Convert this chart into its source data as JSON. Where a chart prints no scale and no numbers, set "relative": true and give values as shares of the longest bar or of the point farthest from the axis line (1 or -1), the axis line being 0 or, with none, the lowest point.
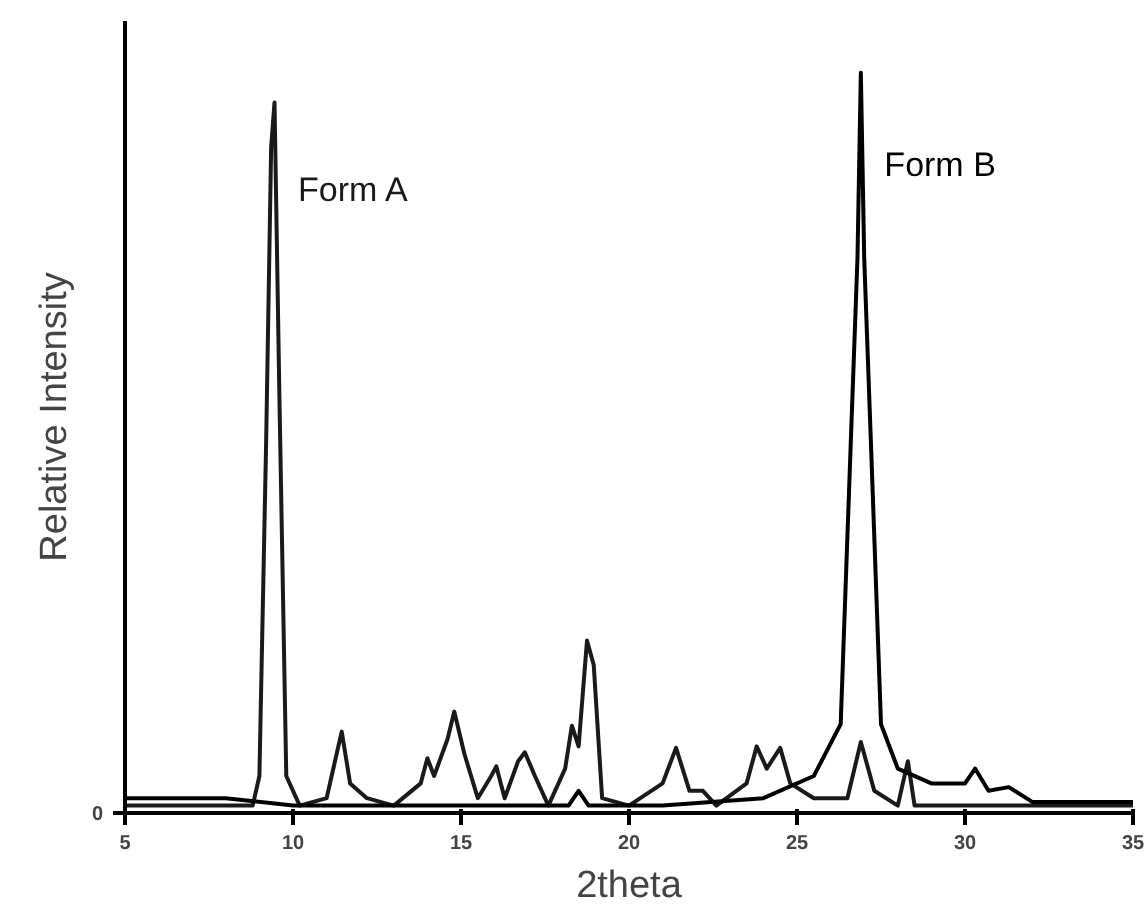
{
  "chart_data": {
    "type": "line",
    "xlabel": "2theta",
    "ylabel": "Relative Intensity",
    "relative": true,
    "xlim": [
      5,
      35
    ],
    "xticks": [
      5,
      10,
      15,
      20,
      25,
      30,
      35
    ],
    "grid": false,
    "marker": "none",
    "line_style": "solid",
    "annotations": [
      "0"
    ],
    "series": [
      {
        "name": "Form A",
        "color": "#1a1a1a",
        "x": [
          5,
          8.8,
          9.0,
          9.2,
          9.35,
          9.45,
          9.6,
          9.8,
          10.2,
          11.0,
          11.3,
          11.45,
          11.7,
          12.2,
          13,
          13.8,
          14.0,
          14.2,
          14.6,
          14.8,
          15.1,
          15.5,
          15.9,
          16.05,
          16.3,
          16.7,
          16.9,
          17.2,
          17.6,
          18.1,
          18.3,
          18.5,
          18.75,
          18.95,
          19.2,
          20,
          21.0,
          21.4,
          21.8,
          22.2,
          22.6,
          23.5,
          23.8,
          24.1,
          24.5,
          24.8,
          25.5,
          26.5,
          26.9,
          27.3,
          28.0,
          28.3,
          28.5,
          30,
          35
        ],
        "values": [
          0.01,
          0.01,
          0.05,
          0.5,
          0.9,
          0.96,
          0.55,
          0.05,
          0.01,
          0.02,
          0.08,
          0.11,
          0.04,
          0.02,
          0.01,
          0.04,
          0.074,
          0.05,
          0.1,
          0.137,
          0.08,
          0.02,
          0.05,
          0.063,
          0.02,
          0.07,
          0.082,
          0.05,
          0.01,
          0.06,
          0.118,
          0.09,
          0.233,
          0.2,
          0.02,
          0.01,
          0.04,
          0.088,
          0.03,
          0.03,
          0.01,
          0.04,
          0.09,
          0.06,
          0.088,
          0.04,
          0.02,
          0.02,
          0.096,
          0.03,
          0.01,
          0.07,
          0.01,
          0.01,
          0.01
        ]
      },
      {
        "name": "Form B",
        "color": "#000000",
        "x": [
          5,
          8,
          10,
          18.2,
          18.5,
          18.8,
          21,
          24,
          25.5,
          26.3,
          26.6,
          26.8,
          26.9,
          27.0,
          27.2,
          27.5,
          28,
          29,
          30.0,
          30.3,
          30.7,
          31.3,
          32,
          34,
          35
        ],
        "values": [
          0.02,
          0.02,
          0.01,
          0.01,
          0.03,
          0.01,
          0.01,
          0.02,
          0.05,
          0.12,
          0.5,
          0.75,
          1.0,
          0.75,
          0.5,
          0.12,
          0.06,
          0.04,
          0.04,
          0.06,
          0.03,
          0.035,
          0.015,
          0.015,
          0.015
        ]
      }
    ]
  }
}
